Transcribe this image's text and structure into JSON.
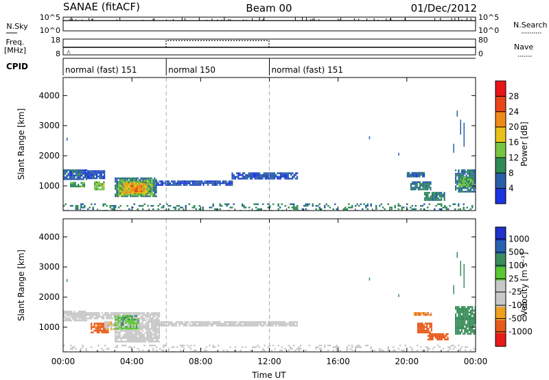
{
  "header": {
    "site": "SANAE (fitACF)",
    "beam": "Beam 00",
    "date": "01/Dec/2012"
  },
  "strip_nsky": {
    "left_label": "N.Sky",
    "right_label": "N.Search",
    "left_ticks": [
      "10^5",
      "10^0"
    ],
    "right_ticks": [
      "10^5",
      "10^0"
    ]
  },
  "strip_freq": {
    "left_label_1": "Freq.",
    "left_label_2": "[MHz]",
    "right_label": "Nave",
    "left_ticks": [
      "18",
      "8"
    ],
    "right_ticks": [
      "80",
      "0"
    ]
  },
  "cpid": {
    "label": "CPID",
    "segments": [
      {
        "name": "normal (fast) 151",
        "start_hour": 0,
        "end_hour": 6
      },
      {
        "name": "normal 150",
        "start_hour": 6,
        "end_hour": 12
      },
      {
        "name": "normal (fast) 151",
        "start_hour": 12,
        "end_hour": 24
      }
    ]
  },
  "colorbars": {
    "power": {
      "title": "Power [dB]",
      "ticks": [
        "28",
        "24",
        "20",
        "16",
        "12",
        "8",
        "4"
      ],
      "colors": [
        "#1e34e0",
        "#2a5fa8",
        "#2e8b57",
        "#76c442",
        "#e8c21a",
        "#f08a1a",
        "#e8461a",
        "#e8141a"
      ]
    },
    "velocity": {
      "title": "Velocity [m s⁻¹]",
      "ticks": [
        "1000",
        "500",
        "100",
        "25",
        "-25",
        "-100",
        "-500",
        "-1000"
      ],
      "colors": [
        "#e81a1a",
        "#e85a1a",
        "#f0a020",
        "#c8c8c8",
        "#c8c8c8",
        "#5ac832",
        "#3a8c5a",
        "#2a62b0",
        "#2032c8"
      ]
    }
  },
  "panel_ticks": {
    "x_labels": [
      "00:00",
      "04:00",
      "08:00",
      "12:00",
      "16:00",
      "20:00",
      "00:00"
    ],
    "xlabel": "Time UT",
    "y_labels": [
      "4000",
      "3000",
      "2000",
      "1000"
    ],
    "ylabel": "Slant Range [km]"
  },
  "chart_data": [
    {
      "type": "heatmap",
      "name": "power",
      "x_units": "hours UT",
      "y_units": "km",
      "xlim": [
        0,
        24
      ],
      "ylim": [
        180,
        4600
      ],
      "value_units": "dB",
      "patches": [
        {
          "x0": 0.0,
          "x1": 1.4,
          "y0": 1200,
          "y1": 1550,
          "value": 6
        },
        {
          "x0": 0.4,
          "x1": 1.2,
          "y0": 980,
          "y1": 1130,
          "value": 11
        },
        {
          "x0": 1.3,
          "x1": 2.4,
          "y0": 1250,
          "y1": 1520,
          "value": 5
        },
        {
          "x0": 1.8,
          "x1": 2.4,
          "y0": 900,
          "y1": 1150,
          "value": 14
        },
        {
          "x0": 3.0,
          "x1": 5.4,
          "y0": 650,
          "y1": 1280,
          "value": 8
        },
        {
          "x0": 3.2,
          "x1": 5.2,
          "y0": 700,
          "y1": 1200,
          "value": 14
        },
        {
          "x0": 3.5,
          "x1": 4.9,
          "y0": 750,
          "y1": 1100,
          "value": 19
        },
        {
          "x0": 3.9,
          "x1": 4.6,
          "y0": 820,
          "y1": 1020,
          "value": 23
        },
        {
          "x0": 5.4,
          "x1": 9.8,
          "y0": 1040,
          "y1": 1180,
          "value": 5
        },
        {
          "x0": 9.8,
          "x1": 13.6,
          "y0": 1250,
          "y1": 1450,
          "value": 5
        },
        {
          "x0": 20.0,
          "x1": 21.0,
          "y0": 1300,
          "y1": 1460,
          "value": 6
        },
        {
          "x0": 20.2,
          "x1": 21.4,
          "y0": 900,
          "y1": 1150,
          "value": 7
        },
        {
          "x0": 21.0,
          "x1": 22.2,
          "y0": 550,
          "y1": 800,
          "value": 8
        },
        {
          "x0": 22.8,
          "x1": 24.0,
          "y0": 800,
          "y1": 1550,
          "value": 7
        },
        {
          "x0": 23.0,
          "x1": 23.8,
          "y0": 1000,
          "y1": 1300,
          "value": 12
        },
        {
          "x0": 0.0,
          "x1": 24.0,
          "y0": 200,
          "y1": 420,
          "value": 9
        }
      ]
    },
    {
      "type": "heatmap",
      "name": "velocity",
      "x_units": "hours UT",
      "y_units": "km",
      "xlim": [
        0,
        24
      ],
      "ylim": [
        180,
        4600
      ],
      "value_units": "m s^-1",
      "patches": [
        {
          "x0": 0.0,
          "x1": 1.4,
          "y0": 1250,
          "y1": 1550,
          "value": 0
        },
        {
          "x0": 1.0,
          "x1": 3.2,
          "y0": 1300,
          "y1": 1500,
          "value": 0
        },
        {
          "x0": 1.6,
          "x1": 2.6,
          "y0": 850,
          "y1": 1150,
          "value": -150
        },
        {
          "x0": 2.4,
          "x1": 3.4,
          "y0": 950,
          "y1": 1200,
          "value": -20
        },
        {
          "x0": 3.0,
          "x1": 5.6,
          "y0": 550,
          "y1": 1500,
          "value": 0
        },
        {
          "x0": 3.0,
          "x1": 4.4,
          "y0": 950,
          "y1": 1400,
          "value": 60
        },
        {
          "x0": 5.4,
          "x1": 13.6,
          "y0": 1050,
          "y1": 1200,
          "value": 0
        },
        {
          "x0": 20.4,
          "x1": 21.4,
          "y0": 1400,
          "y1": 1500,
          "value": -80
        },
        {
          "x0": 20.6,
          "x1": 21.4,
          "y0": 850,
          "y1": 1150,
          "value": -200
        },
        {
          "x0": 21.2,
          "x1": 22.4,
          "y0": 600,
          "y1": 800,
          "value": -300
        },
        {
          "x0": 22.8,
          "x1": 24.0,
          "y0": 800,
          "y1": 1700,
          "value": 300
        },
        {
          "x0": 0.0,
          "x1": 24.0,
          "y0": 200,
          "y1": 420,
          "value": 0
        }
      ]
    }
  ]
}
